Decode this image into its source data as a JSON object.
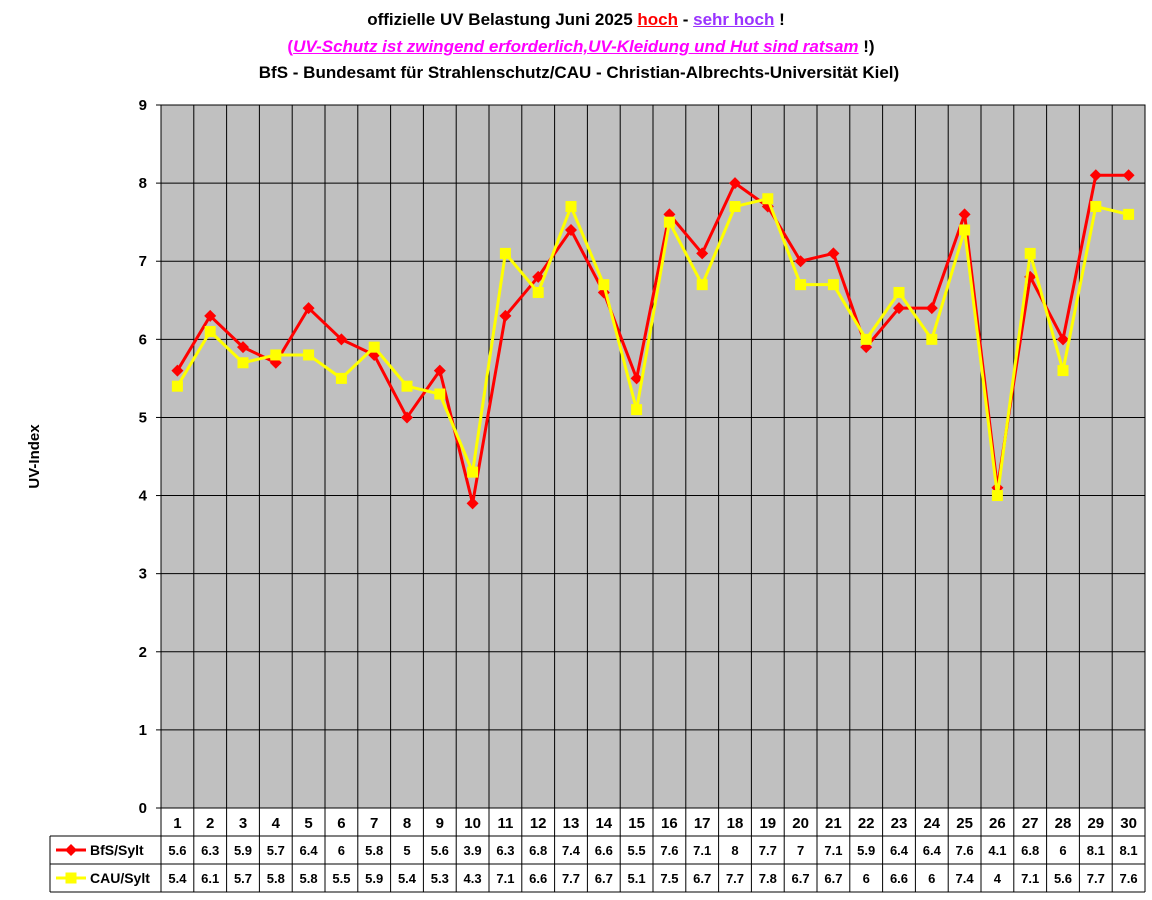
{
  "header": {
    "line1_prefix": "offizielle UV Belastung Juni 2025 ",
    "line1_hoch": "hoch",
    "line1_sep": " - ",
    "line1_sehr": "sehr hoch",
    "line1_suffix": " !",
    "line2_open": "(",
    "line2_text": "UV-Schutz ist zwingend erforderlich,UV-Kleidung und Hut sind ratsam",
    "line2_close": " !)",
    "line3": "BfS - Bundesamt für Strahlenschutz/CAU - Christian-Albrechts-Universität Kiel)"
  },
  "colors": {
    "plot_bg": "#c0c0c0",
    "bfs": "#ff0000",
    "cau": "#ffff00",
    "grid": "#000000"
  },
  "chart_data": {
    "type": "line",
    "title": "offizielle UV Belastung Juni 2025 hoch - sehr hoch !",
    "ylabel": "UV-Index",
    "xlabel": "",
    "ylim": [
      0,
      9
    ],
    "yticks": [
      "0",
      "1",
      "2",
      "3",
      "4",
      "5",
      "6",
      "7",
      "8",
      "9"
    ],
    "grid": true,
    "legend": "data-table",
    "categories": [
      "1",
      "2",
      "3",
      "4",
      "5",
      "6",
      "7",
      "8",
      "9",
      "10",
      "11",
      "12",
      "13",
      "14",
      "15",
      "16",
      "17",
      "18",
      "19",
      "20",
      "21",
      "22",
      "23",
      "24",
      "25",
      "26",
      "27",
      "28",
      "29",
      "30"
    ],
    "series": [
      {
        "name": "BfS/Sylt",
        "marker": "diamond",
        "values": [
          5.6,
          6.3,
          5.9,
          5.7,
          6.4,
          6,
          5.8,
          5,
          5.6,
          3.9,
          6.3,
          6.8,
          7.4,
          6.6,
          5.5,
          7.6,
          7.1,
          8,
          7.7,
          7,
          7.1,
          5.9,
          6.4,
          6.4,
          7.6,
          4.1,
          6.8,
          6,
          8.1,
          8.1
        ],
        "labels": [
          "5.6",
          "6.3",
          "5.9",
          "5.7",
          "6.4",
          "6",
          "5.8",
          "5",
          "5.6",
          "3.9",
          "6.3",
          "6.8",
          "7.4",
          "6.6",
          "5.5",
          "7.6",
          "7.1",
          "8",
          "7.7",
          "7",
          "7.1",
          "5.9",
          "6.4",
          "6.4",
          "7.6",
          "4.1",
          "6.8",
          "6",
          "8.1",
          "8.1"
        ]
      },
      {
        "name": "CAU/Sylt",
        "marker": "square",
        "values": [
          5.4,
          6.1,
          5.7,
          5.8,
          5.8,
          5.5,
          5.9,
          5.4,
          5.3,
          4.3,
          7.1,
          6.6,
          7.7,
          6.7,
          5.1,
          7.5,
          6.7,
          7.7,
          7.8,
          6.7,
          6.7,
          6,
          6.6,
          6,
          7.4,
          4,
          7.1,
          5.6,
          7.7,
          7.6
        ],
        "labels": [
          "5.4",
          "6.1",
          "5.7",
          "5.8",
          "5.8",
          "5.5",
          "5.9",
          "5.4",
          "5.3",
          "4.3",
          "7.1",
          "6.6",
          "7.7",
          "6.7",
          "5.1",
          "7.5",
          "6.7",
          "7.7",
          "7.8",
          "6.7",
          "6.7",
          "6",
          "6.6",
          "6",
          "7.4",
          "4",
          "7.1",
          "5.6",
          "7.7",
          "7.6"
        ]
      }
    ]
  }
}
